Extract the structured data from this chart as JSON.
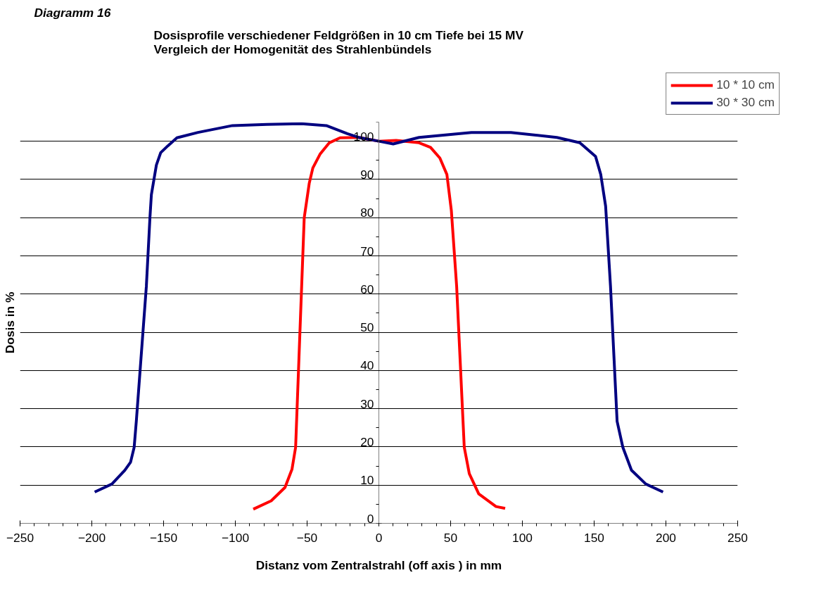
{
  "chart_data": {
    "type": "line",
    "title": "Diagramm 16",
    "subtitle": "Dosisprofile  verschiedener  Feldgrößen  in 10 cm  Tiefe bei  15 MV\nVergleich der Homogenität des Strahlenbündels",
    "xlabel": "Distanz vom Zentralstrahl (off axis ) in mm",
    "ylabel": "Dosis in %",
    "xlim": [
      -250,
      250
    ],
    "xticks": [
      -250,
      -200,
      -150,
      -100,
      -50,
      0,
      50,
      100,
      150,
      200,
      250
    ],
    "ylim": [
      0,
      105
    ],
    "yticks": [
      0,
      10,
      20,
      30,
      40,
      50,
      60,
      70,
      80,
      90,
      100
    ],
    "grid": "y",
    "legend": "top right",
    "marker": "none",
    "line_style": "solid",
    "series": [
      {
        "name": "10 * 10 cm",
        "color": "#ff0000",
        "x": [
          -87.5,
          -75,
          -65.4,
          -60.5,
          -58,
          -53.8,
          -52,
          -48.5,
          -46,
          -41,
          -34.5,
          -27,
          -14,
          0,
          12,
          28,
          36,
          42.5,
          47.4,
          50.5,
          54.2,
          59.5,
          63,
          69.6,
          81.6,
          88
        ],
        "values": [
          3.7,
          5.9,
          9.4,
          14.2,
          19.9,
          62,
          80,
          89,
          93,
          96.6,
          99.6,
          100.9,
          101,
          100,
          100.2,
          99.6,
          98.4,
          95.6,
          91.3,
          81.9,
          62,
          19.9,
          13,
          7.7,
          4.4,
          3.9
        ]
      },
      {
        "name": "30 * 30 cm",
        "color": "#000080",
        "x": [
          -198,
          -186,
          -177,
          -173,
          -170.5,
          -169,
          -162,
          -159.5,
          -158.5,
          -155,
          -152,
          -147,
          -140.7,
          -126,
          -102,
          -78,
          -54,
          -36.6,
          -22,
          -14,
          0,
          10,
          28,
          64.5,
          92,
          124,
          140,
          151,
          154.6,
          158,
          161.4,
          166,
          170,
          176,
          186,
          198
        ],
        "values": [
          8.2,
          10.3,
          13.9,
          16,
          19.9,
          26.7,
          62,
          80,
          86,
          93.8,
          97,
          98.8,
          100.9,
          102.3,
          104.1,
          104.4,
          104.6,
          104.1,
          102,
          101,
          100,
          99.3,
          101,
          102.3,
          102.3,
          101,
          99.6,
          96,
          91.3,
          83,
          62,
          26.7,
          19.9,
          13.9,
          10.3,
          8.2
        ]
      }
    ]
  }
}
